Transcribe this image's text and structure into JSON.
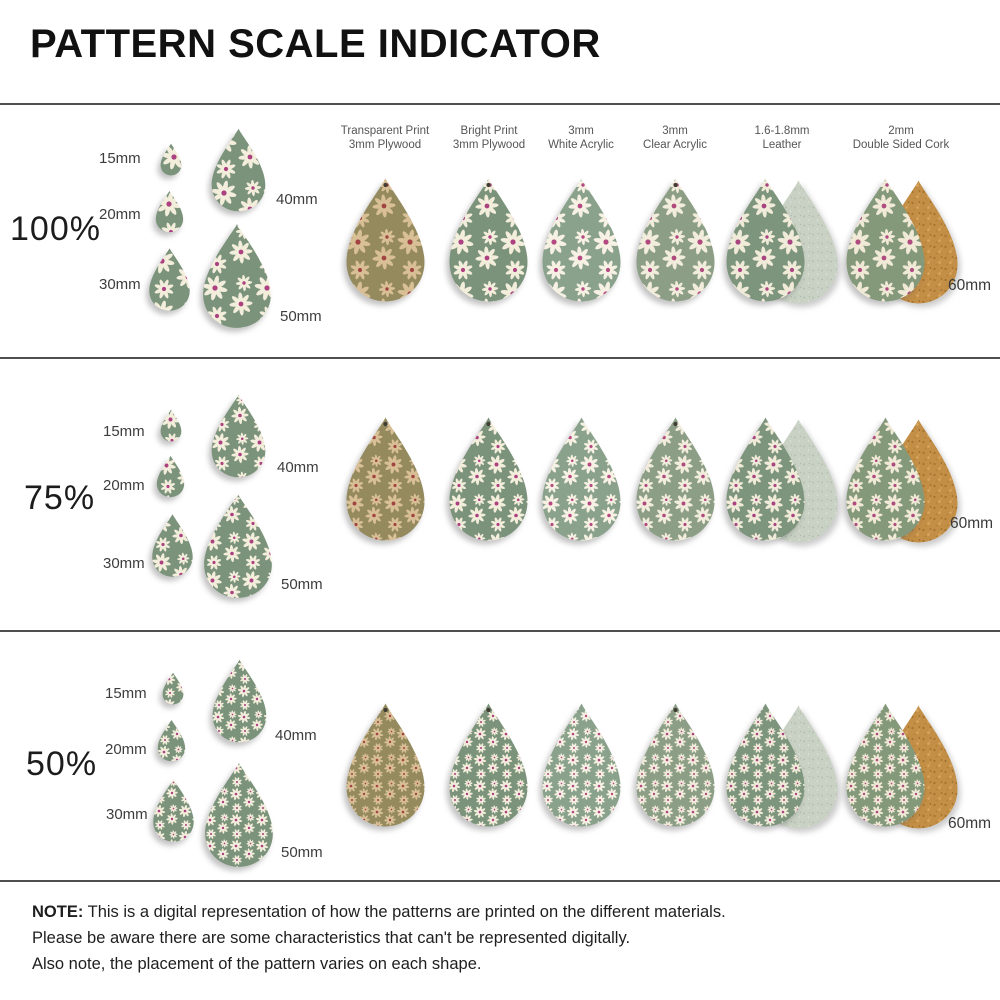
{
  "title": "PATTERN SCALE INDICATOR",
  "materials": [
    {
      "name_line1": "Transparent Print",
      "name_line2": "3mm Plywood"
    },
    {
      "name_line1": "Bright Print",
      "name_line2": "3mm Plywood"
    },
    {
      "name_line1": "3mm",
      "name_line2": "White Acrylic"
    },
    {
      "name_line1": "3mm",
      "name_line2": "Clear Acrylic"
    },
    {
      "name_line1": "1.6-1.8mm",
      "name_line2": "Leather"
    },
    {
      "name_line1": "2mm",
      "name_line2": "Double Sided Cork"
    }
  ],
  "rows": [
    {
      "scale_label": "100%",
      "scale_value": 1,
      "sizes": [
        "15mm",
        "20mm",
        "30mm",
        "40mm",
        "50mm"
      ],
      "large_label": "60mm"
    },
    {
      "scale_label": "75%",
      "scale_value": 0.75,
      "sizes": [
        "15mm",
        "20mm",
        "30mm",
        "40mm",
        "50mm"
      ],
      "large_label": "60mm"
    },
    {
      "scale_label": "50%",
      "scale_value": 0.5,
      "sizes": [
        "15mm",
        "20mm",
        "30mm",
        "40mm",
        "50mm"
      ],
      "large_label": "60mm"
    }
  ],
  "note": {
    "bold": "NOTE:",
    "line1": " This is a digital representation of how the patterns are printed on the different materials.",
    "line2": "Please be aware there are some characteristics that can't be represented digitally.",
    "line3": "Also note, the placement of the pattern varies on each shape."
  },
  "colors": {
    "divider": "#4f4f4f",
    "transparent_plywood": {
      "bg": "#948a5e",
      "petal": "#d9bf96",
      "center": "#a24441"
    },
    "bright_plywood": {
      "bg": "#7b937b",
      "petal": "#f3eddb",
      "center": "#ab4180"
    },
    "white_acrylic": {
      "bg": "#8aa28c",
      "petal": "#f6f1e2",
      "center": "#b54a82"
    },
    "clear_acrylic": {
      "bg": "#8c9f86",
      "petal": "#f1ecdb",
      "center": "#b04a7e"
    },
    "leather": {
      "bg": "#7e957d",
      "petal": "#f0ebd9",
      "center": "#a84580"
    },
    "cork_print": {
      "bg": "#84987a",
      "petal": "#efe9d6",
      "center": "#ae4c7f"
    },
    "leather_back": "#c8d1c4",
    "cork_back": "#c38e45"
  }
}
